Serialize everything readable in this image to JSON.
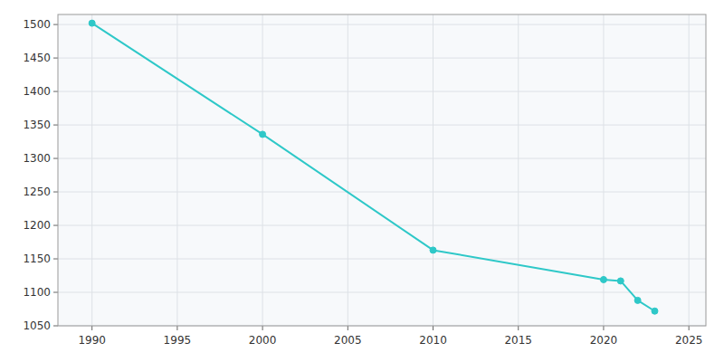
{
  "chart_data": {
    "type": "line",
    "x": [
      1990,
      2000,
      2010,
      2020,
      2021,
      2022,
      2023
    ],
    "values": [
      1502,
      1336,
      1163,
      1119,
      1117,
      1088,
      1072
    ],
    "color": "#2ec8c8",
    "marker": "circle",
    "xlim": [
      1988,
      2026
    ],
    "ylim": [
      1050,
      1515
    ],
    "xticks": [
      1990,
      1995,
      2000,
      2005,
      2010,
      2015,
      2020,
      2025
    ],
    "yticks": [
      1050,
      1100,
      1150,
      1200,
      1250,
      1300,
      1350,
      1400,
      1450,
      1500
    ],
    "grid": true
  }
}
